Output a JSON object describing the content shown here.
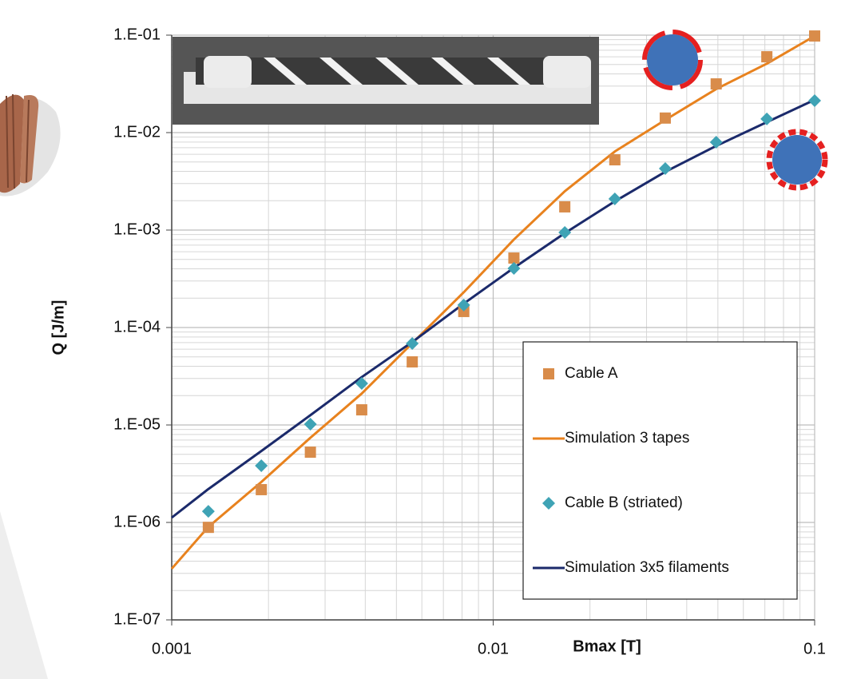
{
  "chart_data": {
    "type": "scatter",
    "x_label": "Bmax [T]",
    "y_label": "Q [J/m]",
    "x_scale": "log",
    "y_scale": "log",
    "xlim": [
      0.001,
      0.1
    ],
    "ylim": [
      1e-07,
      0.1
    ],
    "xticks": [
      0.001,
      0.01,
      0.1
    ],
    "yticks": [
      {
        "value": 1e-07,
        "label": "1.E-07"
      },
      {
        "value": 1e-06,
        "label": "1.E-06"
      },
      {
        "value": 1e-05,
        "label": "1.E-05"
      },
      {
        "value": 0.0001,
        "label": "1.E-04"
      },
      {
        "value": 0.001,
        "label": "1.E-03"
      },
      {
        "value": 0.01,
        "label": "1.E-02"
      },
      {
        "value": 0.1,
        "label": "1.E-01"
      }
    ],
    "grid": true,
    "minor_grid": true,
    "legend_loc": "lower right",
    "x": [
      0.001,
      0.0013,
      0.0019,
      0.0027,
      0.0039,
      0.0056,
      0.0081,
      0.0116,
      0.0167,
      0.0239,
      0.0343,
      0.0494,
      0.071,
      0.1
    ],
    "series": [
      {
        "name": "Cable A",
        "style": "square",
        "color": "#d98c4a",
        "values": [
          null,
          8.9e-07,
          2.17e-06,
          5.26e-06,
          1.43e-05,
          4.44e-05,
          0.000146,
          0.000516,
          0.00173,
          0.00526,
          0.0141,
          0.0316,
          0.06,
          0.098
        ]
      },
      {
        "name": "Simulation 3 tapes",
        "style": "line",
        "color": "#e8821e",
        "values": [
          3.35e-07,
          9e-07,
          2.6e-06,
          7.4e-06,
          2.1e-05,
          6.9e-05,
          0.00023,
          0.0008,
          0.0025,
          0.0064,
          0.0135,
          0.028,
          0.051,
          0.098
        ]
      },
      {
        "name": "Cable B (striated)",
        "style": "diamond",
        "color": "#3fa3b5",
        "values": [
          null,
          1.3e-06,
          3.82e-06,
          1.02e-05,
          2.67e-05,
          6.86e-05,
          0.00017,
          0.000404,
          0.000945,
          0.00209,
          0.00428,
          0.00797,
          0.0138,
          0.0213
        ]
      },
      {
        "name": "Simulation 3x5 filaments",
        "style": "line",
        "color": "#1b2a6b",
        "values": [
          1.12e-06,
          2.2e-06,
          5.4e-06,
          1.26e-05,
          3.1e-05,
          7.1e-05,
          0.000176,
          0.00041,
          0.00093,
          0.00197,
          0.00396,
          0.0073,
          0.0128,
          0.0217
        ]
      }
    ]
  }
}
